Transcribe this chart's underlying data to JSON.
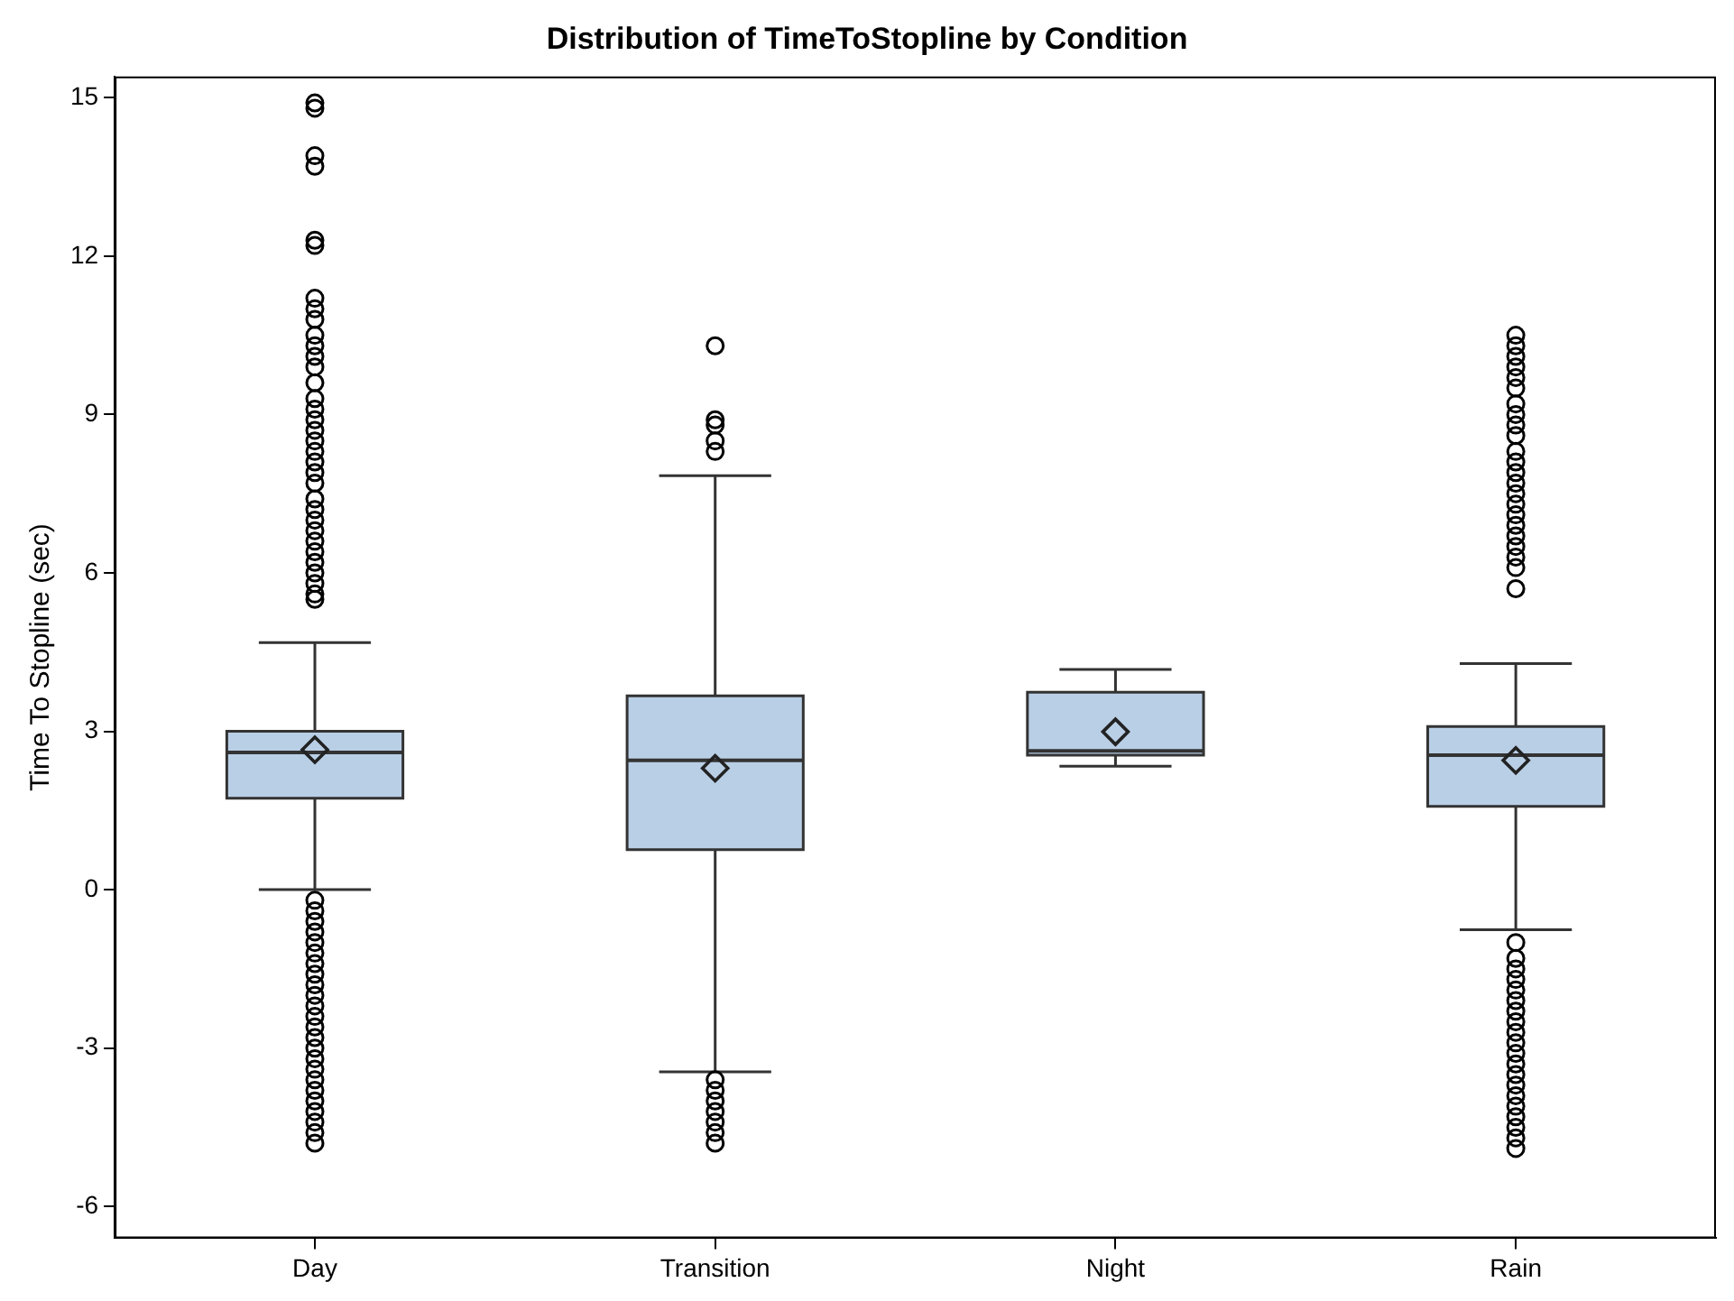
{
  "chart_data": {
    "type": "box",
    "title": "Distribution of TimeToStopline by Condition",
    "ylabel": "Time To Stopline (sec)",
    "categories": [
      "Day",
      "Transition",
      "Night",
      "Rain"
    ],
    "ylim": [
      -6.6,
      15.4
    ],
    "yticks": [
      -6,
      -3,
      0,
      3,
      6,
      9,
      12,
      15
    ],
    "grid": false,
    "legend": false,
    "series": [
      {
        "color": "#b9cfe6",
        "boxes": [
          {
            "low": 0,
            "q1": 1.73,
            "median": 2.6,
            "q3": 3.0,
            "high": 4.68,
            "mean": 2.65,
            "outliers": [
              14.9,
              14.8,
              13.9,
              13.7,
              12.3,
              12.2,
              11.2,
              11.0,
              10.8,
              10.5,
              10.3,
              10.1,
              9.9,
              9.6,
              9.3,
              9.1,
              8.9,
              8.7,
              8.5,
              8.3,
              8.1,
              7.9,
              7.7,
              7.4,
              7.2,
              7.0,
              6.8,
              6.6,
              6.4,
              6.2,
              6.0,
              5.8,
              5.6,
              5.5,
              -0.2,
              -0.4,
              -0.6,
              -0.8,
              -1.0,
              -1.2,
              -1.4,
              -1.6,
              -1.8,
              -2.0,
              -2.2,
              -2.4,
              -2.6,
              -2.8,
              -3.0,
              -3.2,
              -3.4,
              -3.6,
              -3.8,
              -4.0,
              -4.2,
              -4.4,
              -4.6,
              -4.8
            ]
          },
          {
            "low": -3.45,
            "q1": 0.76,
            "median": 2.45,
            "q3": 3.67,
            "high": 7.84,
            "mean": 2.3,
            "outliers": [
              10.3,
              8.9,
              8.8,
              8.5,
              8.3,
              -3.6,
              -3.8,
              -4.0,
              -4.2,
              -4.4,
              -4.6,
              -4.8
            ]
          },
          {
            "low": 2.34,
            "q1": 2.55,
            "median": 2.63,
            "q3": 3.74,
            "high": 4.17,
            "mean": 2.99
          },
          {
            "low": -0.76,
            "q1": 1.58,
            "median": 2.55,
            "q3": 3.09,
            "high": 4.28,
            "mean": 2.45,
            "outliers": [
              10.5,
              10.3,
              10.1,
              9.9,
              9.7,
              9.5,
              9.2,
              9.0,
              8.8,
              8.6,
              8.3,
              8.1,
              7.9,
              7.7,
              7.5,
              7.3,
              7.1,
              6.9,
              6.7,
              6.5,
              6.3,
              6.1,
              5.7,
              -1.0,
              -1.3,
              -1.5,
              -1.7,
              -1.9,
              -2.1,
              -2.3,
              -2.5,
              -2.7,
              -2.9,
              -3.1,
              -3.3,
              -3.5,
              -3.7,
              -3.9,
              -4.1,
              -4.3,
              -4.5,
              -4.7,
              -4.9
            ]
          }
        ]
      }
    ]
  }
}
